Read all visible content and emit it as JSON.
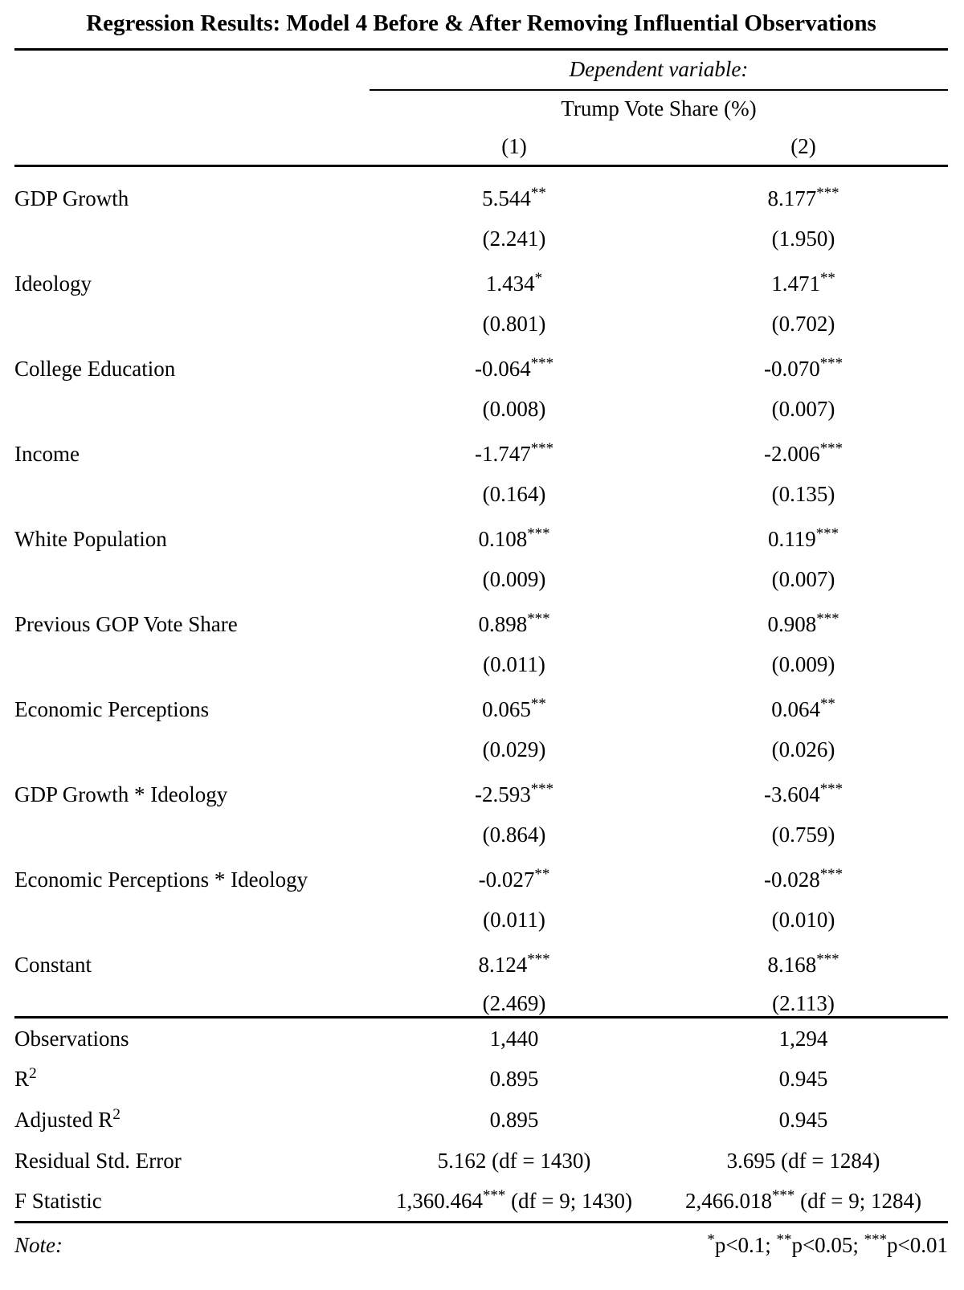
{
  "title": "Regression Results: Model 4 Before & After Removing Influential Observations",
  "header": {
    "dependent_variable_label": "Dependent variable:",
    "dependent_variable_name": "Trump Vote Share (%)",
    "column_labels": [
      "(1)",
      "(2)"
    ]
  },
  "coefficients": [
    {
      "label": "GDP Growth",
      "m1": "5.544",
      "m1_stars": "**",
      "m1_se": "(2.241)",
      "m2": "8.177",
      "m2_stars": "***",
      "m2_se": "(1.950)"
    },
    {
      "label": "Ideology",
      "m1": "1.434",
      "m1_stars": "*",
      "m1_se": "(0.801)",
      "m2": "1.471",
      "m2_stars": "**",
      "m2_se": "(0.702)"
    },
    {
      "label": "College Education",
      "m1": "-0.064",
      "m1_stars": "***",
      "m1_se": "(0.008)",
      "m2": "-0.070",
      "m2_stars": "***",
      "m2_se": "(0.007)"
    },
    {
      "label": "Income",
      "m1": "-1.747",
      "m1_stars": "***",
      "m1_se": "(0.164)",
      "m2": "-2.006",
      "m2_stars": "***",
      "m2_se": "(0.135)"
    },
    {
      "label": "White Population",
      "m1": "0.108",
      "m1_stars": "***",
      "m1_se": "(0.009)",
      "m2": "0.119",
      "m2_stars": "***",
      "m2_se": "(0.007)"
    },
    {
      "label": "Previous GOP Vote Share",
      "m1": "0.898",
      "m1_stars": "***",
      "m1_se": "(0.011)",
      "m2": "0.908",
      "m2_stars": "***",
      "m2_se": "(0.009)"
    },
    {
      "label": "Economic Perceptions",
      "m1": "0.065",
      "m1_stars": "**",
      "m1_se": "(0.029)",
      "m2": "0.064",
      "m2_stars": "**",
      "m2_se": "(0.026)"
    },
    {
      "label": "GDP Growth * Ideology",
      "m1": "-2.593",
      "m1_stars": "***",
      "m1_se": "(0.864)",
      "m2": "-3.604",
      "m2_stars": "***",
      "m2_se": "(0.759)"
    },
    {
      "label": "Economic Perceptions * Ideology",
      "m1": "-0.027",
      "m1_stars": "**",
      "m1_se": "(0.011)",
      "m2": "-0.028",
      "m2_stars": "***",
      "m2_se": "(0.010)"
    },
    {
      "label": "Constant",
      "m1": "8.124",
      "m1_stars": "***",
      "m1_se": "(2.469)",
      "m2": "8.168",
      "m2_stars": "***",
      "m2_se": "(2.113)"
    }
  ],
  "summary": {
    "observations": {
      "label": "Observations",
      "m1": "1,440",
      "m2": "1,294"
    },
    "r2": {
      "label": "R",
      "label_sup": "2",
      "m1": "0.895",
      "m2": "0.945"
    },
    "adj_r2": {
      "label": "Adjusted R",
      "label_sup": "2",
      "m1": "0.895",
      "m2": "0.945"
    },
    "rse": {
      "label": "Residual Std. Error",
      "m1": "5.162 (df = 1430)",
      "m2": "3.695 (df = 1284)"
    },
    "fstat": {
      "label": "F Statistic",
      "m1": "1,360.464",
      "m1_stars": "***",
      "m1_suffix": " (df = 9; 1430)",
      "m2": "2,466.018",
      "m2_stars": "***",
      "m2_suffix": " (df = 9; 1284)"
    }
  },
  "note": {
    "label": "Note:",
    "legend": [
      {
        "stars": "*",
        "text": "p<0.1; "
      },
      {
        "stars": "**",
        "text": "p<0.05; "
      },
      {
        "stars": "***",
        "text": "p<0.01"
      }
    ]
  }
}
